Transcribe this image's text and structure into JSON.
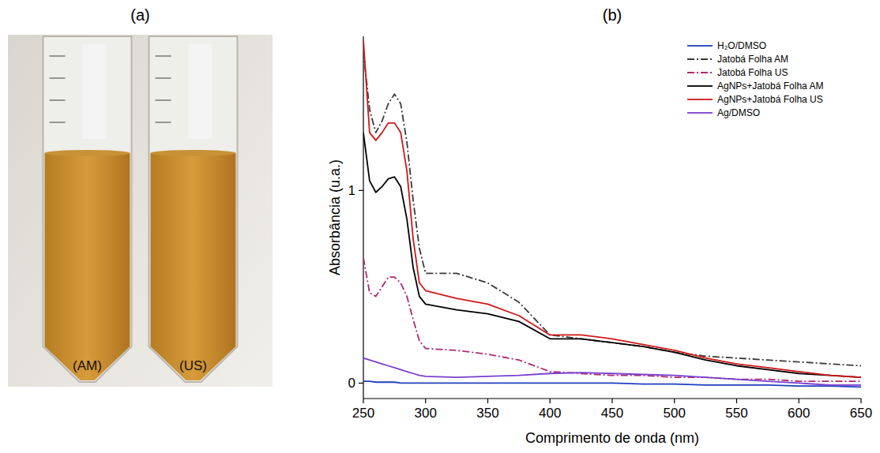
{
  "photo": {
    "label": "(a)",
    "tubes": [
      "(AM)",
      "(US)"
    ]
  },
  "chart_data": {
    "type": "line",
    "panel_label": "(b)",
    "x_label": "Comprimento de onda (nm)",
    "y_label": "Absorbância (u.a.)",
    "x": [
      250,
      255,
      260,
      265,
      270,
      275,
      280,
      285,
      290,
      295,
      300,
      325,
      350,
      375,
      400,
      425,
      450,
      475,
      500,
      525,
      550,
      575,
      600,
      625,
      650
    ],
    "xlim": [
      250,
      650
    ],
    "xticks": [
      250,
      300,
      350,
      400,
      450,
      500,
      550,
      600,
      650
    ],
    "ylim": [
      -0.08,
      1.8
    ],
    "yticks": [
      0,
      1
    ],
    "grid": false,
    "legend": "upper right",
    "series": [
      {
        "name": "H₂O/DMSO",
        "color": "#1f3fbf",
        "line_style": "solid",
        "values": [
          0.01,
          0.01,
          0.005,
          0.005,
          0.005,
          0.005,
          0.0,
          0.0,
          0.0,
          0.0,
          0.0,
          0.0,
          0.0,
          0.0,
          0.0,
          0.0,
          0.0,
          -0.005,
          -0.005,
          -0.01,
          -0.01,
          -0.01,
          -0.015,
          -0.015,
          -0.02
        ]
      },
      {
        "name": "Jatobá Folha AM",
        "color": "#3a3a3a",
        "line_style": "dash-dot",
        "values": [
          1.72,
          1.42,
          1.3,
          1.36,
          1.45,
          1.5,
          1.45,
          1.25,
          0.95,
          0.7,
          0.57,
          0.57,
          0.52,
          0.42,
          0.25,
          0.23,
          0.21,
          0.19,
          0.16,
          0.14,
          0.13,
          0.12,
          0.11,
          0.1,
          0.09
        ]
      },
      {
        "name": "Jatobá Folha US",
        "color": "#b0286e",
        "line_style": "dash-dot",
        "values": [
          0.65,
          0.47,
          0.45,
          0.5,
          0.55,
          0.55,
          0.52,
          0.45,
          0.33,
          0.22,
          0.18,
          0.17,
          0.15,
          0.12,
          0.06,
          0.05,
          0.04,
          0.04,
          0.03,
          0.03,
          0.02,
          0.02,
          0.01,
          0.01,
          0.01
        ]
      },
      {
        "name": "AgNPs+Jatobá Folha AM",
        "color": "#000000",
        "line_style": "solid",
        "values": [
          1.3,
          1.05,
          0.99,
          1.02,
          1.06,
          1.07,
          1.02,
          0.85,
          0.6,
          0.45,
          0.41,
          0.38,
          0.36,
          0.32,
          0.23,
          0.23,
          0.21,
          0.19,
          0.16,
          0.12,
          0.09,
          0.07,
          0.05,
          0.04,
          0.03
        ]
      },
      {
        "name": "AgNPs+Jatobá Folha US",
        "color": "#d01818",
        "line_style": "solid",
        "values": [
          1.78,
          1.3,
          1.26,
          1.3,
          1.35,
          1.35,
          1.3,
          1.1,
          0.75,
          0.52,
          0.48,
          0.44,
          0.41,
          0.35,
          0.25,
          0.25,
          0.23,
          0.2,
          0.17,
          0.13,
          0.1,
          0.08,
          0.06,
          0.04,
          0.03
        ]
      },
      {
        "name": "Ag/DMSO",
        "color": "#7a3fd0",
        "line_style": "solid",
        "values": [
          0.13,
          0.12,
          0.11,
          0.1,
          0.09,
          0.08,
          0.07,
          0.06,
          0.05,
          0.04,
          0.035,
          0.03,
          0.035,
          0.04,
          0.05,
          0.055,
          0.05,
          0.045,
          0.04,
          0.03,
          0.02,
          0.01,
          0.0,
          -0.01,
          -0.01
        ]
      }
    ]
  }
}
